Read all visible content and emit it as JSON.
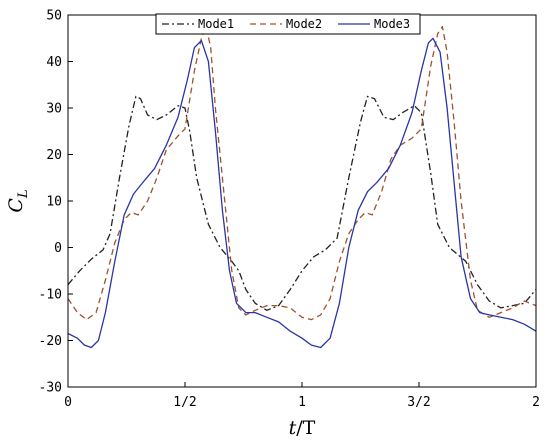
{
  "chart_data": {
    "type": "line",
    "xlabel": {
      "italic": "t",
      "rest": "/T"
    },
    "ylabel": {
      "main": "C",
      "sub": "L"
    },
    "xlim": [
      0,
      2
    ],
    "ylim": [
      -30,
      50
    ],
    "xticks": [
      {
        "value": 0,
        "label": "0"
      },
      {
        "value": 0.5,
        "label": "1/2"
      },
      {
        "value": 1,
        "label": "1"
      },
      {
        "value": 1.5,
        "label": "3/2"
      },
      {
        "value": 2,
        "label": "2"
      }
    ],
    "yticks": [
      {
        "value": -30,
        "label": "-30"
      },
      {
        "value": -20,
        "label": "-20"
      },
      {
        "value": -10,
        "label": "-10"
      },
      {
        "value": 0,
        "label": "0"
      },
      {
        "value": 10,
        "label": "10"
      },
      {
        "value": 20,
        "label": "20"
      },
      {
        "value": 30,
        "label": "30"
      },
      {
        "value": 40,
        "label": "40"
      },
      {
        "value": 50,
        "label": "50"
      }
    ],
    "grid": false,
    "legend_position": "top-center",
    "series": [
      {
        "name": "Mode1",
        "color": "#222222",
        "dash": "dashdot",
        "points": [
          [
            0,
            -8
          ],
          [
            0.05,
            -5
          ],
          [
            0.1,
            -2.5
          ],
          [
            0.15,
            -0.5
          ],
          [
            0.18,
            3
          ],
          [
            0.22,
            15
          ],
          [
            0.26,
            26
          ],
          [
            0.29,
            32.5
          ],
          [
            0.31,
            32
          ],
          [
            0.34,
            28.5
          ],
          [
            0.38,
            27.5
          ],
          [
            0.42,
            28.5
          ],
          [
            0.47,
            30.5
          ],
          [
            0.5,
            30
          ],
          [
            0.52,
            25
          ],
          [
            0.55,
            15
          ],
          [
            0.6,
            5
          ],
          [
            0.65,
            0
          ],
          [
            0.7,
            -3
          ],
          [
            0.73,
            -5
          ],
          [
            0.76,
            -9
          ],
          [
            0.8,
            -12
          ],
          [
            0.85,
            -13.5
          ],
          [
            0.9,
            -12.5
          ],
          [
            0.95,
            -9
          ],
          [
            1,
            -5
          ],
          [
            1.05,
            -2
          ],
          [
            1.1,
            -0.5
          ],
          [
            1.15,
            2
          ],
          [
            1.2,
            15
          ],
          [
            1.25,
            27
          ],
          [
            1.28,
            32.5
          ],
          [
            1.31,
            32
          ],
          [
            1.35,
            28
          ],
          [
            1.39,
            27.5
          ],
          [
            1.43,
            29
          ],
          [
            1.48,
            30.5
          ],
          [
            1.51,
            29
          ],
          [
            1.55,
            16
          ],
          [
            1.58,
            5
          ],
          [
            1.63,
            0
          ],
          [
            1.7,
            -3
          ],
          [
            1.75,
            -8
          ],
          [
            1.8,
            -11.5
          ],
          [
            1.85,
            -13
          ],
          [
            1.9,
            -12.5
          ],
          [
            1.95,
            -12
          ],
          [
            2,
            -9
          ]
        ]
      },
      {
        "name": "Mode2",
        "color": "#a0522d",
        "dash": "dash",
        "points": [
          [
            0,
            -11
          ],
          [
            0.04,
            -14
          ],
          [
            0.08,
            -15.5
          ],
          [
            0.12,
            -14
          ],
          [
            0.16,
            -7
          ],
          [
            0.2,
            1
          ],
          [
            0.24,
            6
          ],
          [
            0.27,
            7.5
          ],
          [
            0.3,
            7
          ],
          [
            0.34,
            10
          ],
          [
            0.38,
            15
          ],
          [
            0.42,
            21
          ],
          [
            0.47,
            24
          ],
          [
            0.5,
            25.5
          ],
          [
            0.54,
            38
          ],
          [
            0.57,
            45
          ],
          [
            0.59,
            47.5
          ],
          [
            0.61,
            43
          ],
          [
            0.63,
            30
          ],
          [
            0.66,
            15
          ],
          [
            0.7,
            -5
          ],
          [
            0.73,
            -13
          ],
          [
            0.76,
            -14.5
          ],
          [
            0.8,
            -13.5
          ],
          [
            0.85,
            -12.5
          ],
          [
            0.9,
            -12.5
          ],
          [
            0.95,
            -13
          ],
          [
            1,
            -15
          ],
          [
            1.04,
            -15.5
          ],
          [
            1.08,
            -14.5
          ],
          [
            1.12,
            -11
          ],
          [
            1.16,
            -3
          ],
          [
            1.2,
            3
          ],
          [
            1.24,
            6
          ],
          [
            1.27,
            7.5
          ],
          [
            1.3,
            7
          ],
          [
            1.34,
            12
          ],
          [
            1.38,
            19
          ],
          [
            1.42,
            22
          ],
          [
            1.47,
            23.5
          ],
          [
            1.51,
            25.5
          ],
          [
            1.55,
            39
          ],
          [
            1.58,
            46
          ],
          [
            1.6,
            47.5
          ],
          [
            1.62,
            42
          ],
          [
            1.65,
            27
          ],
          [
            1.68,
            10
          ],
          [
            1.72,
            -7
          ],
          [
            1.75,
            -13.5
          ],
          [
            1.8,
            -15
          ],
          [
            1.85,
            -14
          ],
          [
            1.9,
            -13
          ],
          [
            1.95,
            -11.5
          ],
          [
            2,
            -12.5
          ]
        ]
      },
      {
        "name": "Mode3",
        "color": "#2a35a8",
        "dash": "solid",
        "points": [
          [
            0,
            -18.5
          ],
          [
            0.04,
            -19.5
          ],
          [
            0.07,
            -21
          ],
          [
            0.1,
            -21.5
          ],
          [
            0.13,
            -20
          ],
          [
            0.16,
            -14
          ],
          [
            0.2,
            -3
          ],
          [
            0.24,
            7
          ],
          [
            0.28,
            11.5
          ],
          [
            0.32,
            14
          ],
          [
            0.37,
            17
          ],
          [
            0.42,
            22
          ],
          [
            0.47,
            28
          ],
          [
            0.51,
            36
          ],
          [
            0.54,
            43
          ],
          [
            0.57,
            44.5
          ],
          [
            0.6,
            40
          ],
          [
            0.63,
            25
          ],
          [
            0.66,
            8
          ],
          [
            0.69,
            -5
          ],
          [
            0.72,
            -12
          ],
          [
            0.76,
            -14
          ],
          [
            0.8,
            -14
          ],
          [
            0.85,
            -15
          ],
          [
            0.9,
            -16
          ],
          [
            0.95,
            -18
          ],
          [
            1,
            -19.5
          ],
          [
            1.04,
            -21
          ],
          [
            1.08,
            -21.5
          ],
          [
            1.12,
            -19.5
          ],
          [
            1.16,
            -12
          ],
          [
            1.2,
            0
          ],
          [
            1.24,
            8
          ],
          [
            1.28,
            12
          ],
          [
            1.32,
            14
          ],
          [
            1.37,
            17
          ],
          [
            1.42,
            22
          ],
          [
            1.47,
            29
          ],
          [
            1.51,
            38
          ],
          [
            1.54,
            44
          ],
          [
            1.56,
            45
          ],
          [
            1.59,
            42
          ],
          [
            1.62,
            30
          ],
          [
            1.65,
            14
          ],
          [
            1.68,
            -2
          ],
          [
            1.72,
            -11
          ],
          [
            1.76,
            -14
          ],
          [
            1.8,
            -14.5
          ],
          [
            1.85,
            -15
          ],
          [
            1.9,
            -15.5
          ],
          [
            1.95,
            -16.5
          ],
          [
            2,
            -18
          ]
        ]
      }
    ]
  }
}
